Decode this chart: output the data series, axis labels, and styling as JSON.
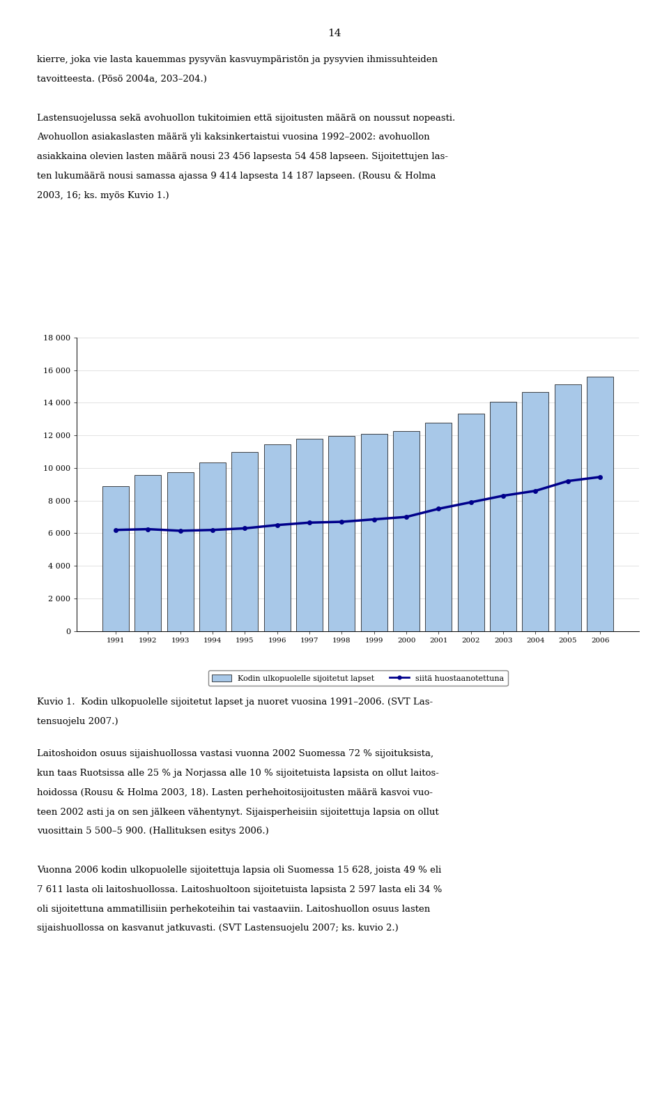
{
  "years": [
    1991,
    1992,
    1993,
    1994,
    1995,
    1996,
    1997,
    1998,
    1999,
    2000,
    2001,
    2002,
    2003,
    2004,
    2005,
    2006
  ],
  "bar_values": [
    8900,
    9550,
    9750,
    10350,
    11000,
    11450,
    11800,
    11950,
    12100,
    12250,
    12800,
    13350,
    14050,
    14650,
    15150,
    15600
  ],
  "line_values": [
    6200,
    6250,
    6150,
    6200,
    6300,
    6500,
    6650,
    6700,
    6850,
    7000,
    7500,
    7900,
    8300,
    8600,
    9200,
    9450
  ],
  "bar_color": "#a8c8e8",
  "bar_edge_color": "#000000",
  "line_color": "#00008B",
  "ylim": [
    0,
    18000
  ],
  "yticks": [
    0,
    2000,
    4000,
    6000,
    8000,
    10000,
    12000,
    14000,
    16000,
    18000
  ],
  "legend_bar_label": "Kodin ulkopuolelle sijoitetut lapset",
  "legend_line_label": "siitä huostaanotettuna",
  "page_number": "14",
  "text_blocks": [
    "kierre, joka vie lasta kauemmas pysyvän kasvuympäristön ja pysyvien ihmissuhteiden",
    "tavoitteesta. (Pösö 2004a, 203–204.)",
    "",
    "Lastensuojelussa sekä avohuollon tukitoimien että sijoitusten määrä on noussut nopeasti.",
    "Avohuollon asiakaslasten määrä yli kaksinkertaistui vuosina 1992–2002: avohuollon",
    "asiakkaina olevien lasten määrä nousi 23 456 lapsesta 54 458 lapseen. Sijoitettujen las-",
    "ten lukumäärä nousi samassa ajassa 9 414 lapsesta 14 187 lapseen. (Rousu & Holma",
    "2003, 16; ks. myös Kuvio 1.)"
  ],
  "caption_line1": "Kuvio 1.  Kodin ulkopuolelle sijoitetut lapset ja nuoret vuosina 1991–2006. (SVT Las-",
  "caption_line2": "tensuojelu 2007.)",
  "bottom_texts": [
    "Laitoshoidon osuus sijaishuollossa vastasi vuonna 2002 Suomessa 72 % sijoituksista,",
    "kun taas Ruotsissa alle 25 % ja Norjassa alle 10 % sijoitetuista lapsista on ollut laitos-",
    "hoidossa (Rousu & Holma 2003, 18). Lasten perhehoitosijoitusten määrä kasvoi vuo-",
    "teen 2002 asti ja on sen jälkeen vähentynyt. Sijaisperheisiin sijoitettuja lapsia on ollut",
    "vuosittain 5 500–5 900. (Hallituksen esitys 2006.)",
    "",
    "Vuonna 2006 kodin ulkopuolelle sijoitettuja lapsia oli Suomessa 15 628, joista 49 % eli",
    "7 611 lasta oli laitoshuollossa. Laitoshuoltoon sijoitetuista lapsista 2 597 lasta eli 34 %",
    "oli sijoitettuna ammatillisiin perhekoteihin tai vastaaviin. Laitoshuollon osuus lasten",
    "sijaishuollossa on kasvanut jatkuvasti. (SVT Lastensuojelu 2007; ks. kuvio 2.)"
  ]
}
